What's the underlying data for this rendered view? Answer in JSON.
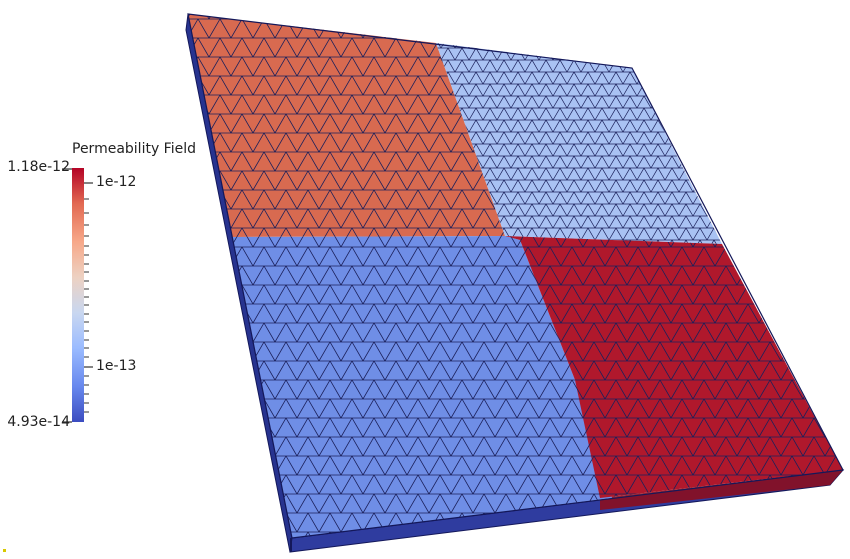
{
  "legend": {
    "title": "Permeability Field",
    "max_label": "1.18e-12",
    "min_label": "4.93e-14",
    "major_ticks": [
      "1e-12",
      "1e-13"
    ],
    "colormap": [
      "#3b4cc0",
      "#6788ee",
      "#9abbff",
      "#c9d7f0",
      "#edd1c2",
      "#f7a889",
      "#e26952",
      "#b40426"
    ]
  },
  "quadrants": [
    {
      "id": "top-left",
      "color": "#d86a50"
    },
    {
      "id": "top-right",
      "color": "#a9c2f3"
    },
    {
      "id": "bottom-left",
      "color": "#6f8ee6"
    },
    {
      "id": "bottom-right",
      "color": "#b0182c"
    }
  ]
}
